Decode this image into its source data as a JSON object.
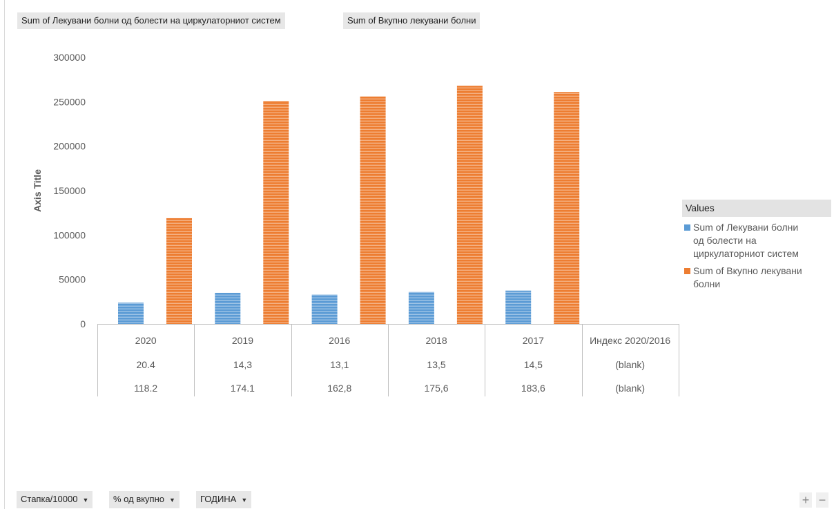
{
  "top_fields": [
    {
      "label": "Sum of Лекувани болни од болести на циркулаторниот систем"
    },
    {
      "label": "Sum of Вкупно лекувани болни"
    }
  ],
  "bottom_fields": [
    {
      "label": "Стапка/10000",
      "dropdown_icon": "triangle-down"
    },
    {
      "label": "% од вкупно",
      "dropdown_icon": "triangle-down"
    },
    {
      "label": "ГОДИНА",
      "dropdown_icon": "triangle-down"
    }
  ],
  "zoom": {
    "plus": "+",
    "minus": "−"
  },
  "legend": {
    "title": "Values"
  },
  "colors": {
    "series1": "#5b9bd5",
    "series2": "#ed7d31"
  },
  "chart_data": {
    "type": "bar",
    "ylabel": "Axis Title",
    "ylim": [
      0,
      300000
    ],
    "yticks": [
      "300000",
      "250000",
      "200000",
      "150000",
      "100000",
      "50000",
      "0"
    ],
    "categories": [
      {
        "col1": "2020",
        "col2": "20.4",
        "col3": "118.2"
      },
      {
        "col1": "2019",
        "col2": "14,3",
        "col3": "174.1"
      },
      {
        "col1": "2016",
        "col2": "13,1",
        "col3": "162,8"
      },
      {
        "col1": "2018",
        "col2": "13,5",
        "col3": "175,6"
      },
      {
        "col1": "2017",
        "col2": "14,5",
        "col3": "183,6"
      },
      {
        "col1": "Индекс 2020/2016",
        "col2": "(blank)",
        "col3": "(blank)"
      }
    ],
    "series": [
      {
        "name": "Sum of Лекувани болни од болести на циркулаторниот систем",
        "values": [
          24000,
          35000,
          33000,
          36000,
          37500,
          null
        ]
      },
      {
        "name": "Sum of Вкупно лекувани болни",
        "values": [
          119000,
          251000,
          256000,
          268000,
          261000,
          null
        ]
      }
    ],
    "legend_labels": [
      [
        "Sum of Лекувани болни",
        "од болести на",
        "циркулаторниот систем"
      ],
      [
        "Sum of Вкупно лекувани",
        "болни"
      ]
    ]
  }
}
